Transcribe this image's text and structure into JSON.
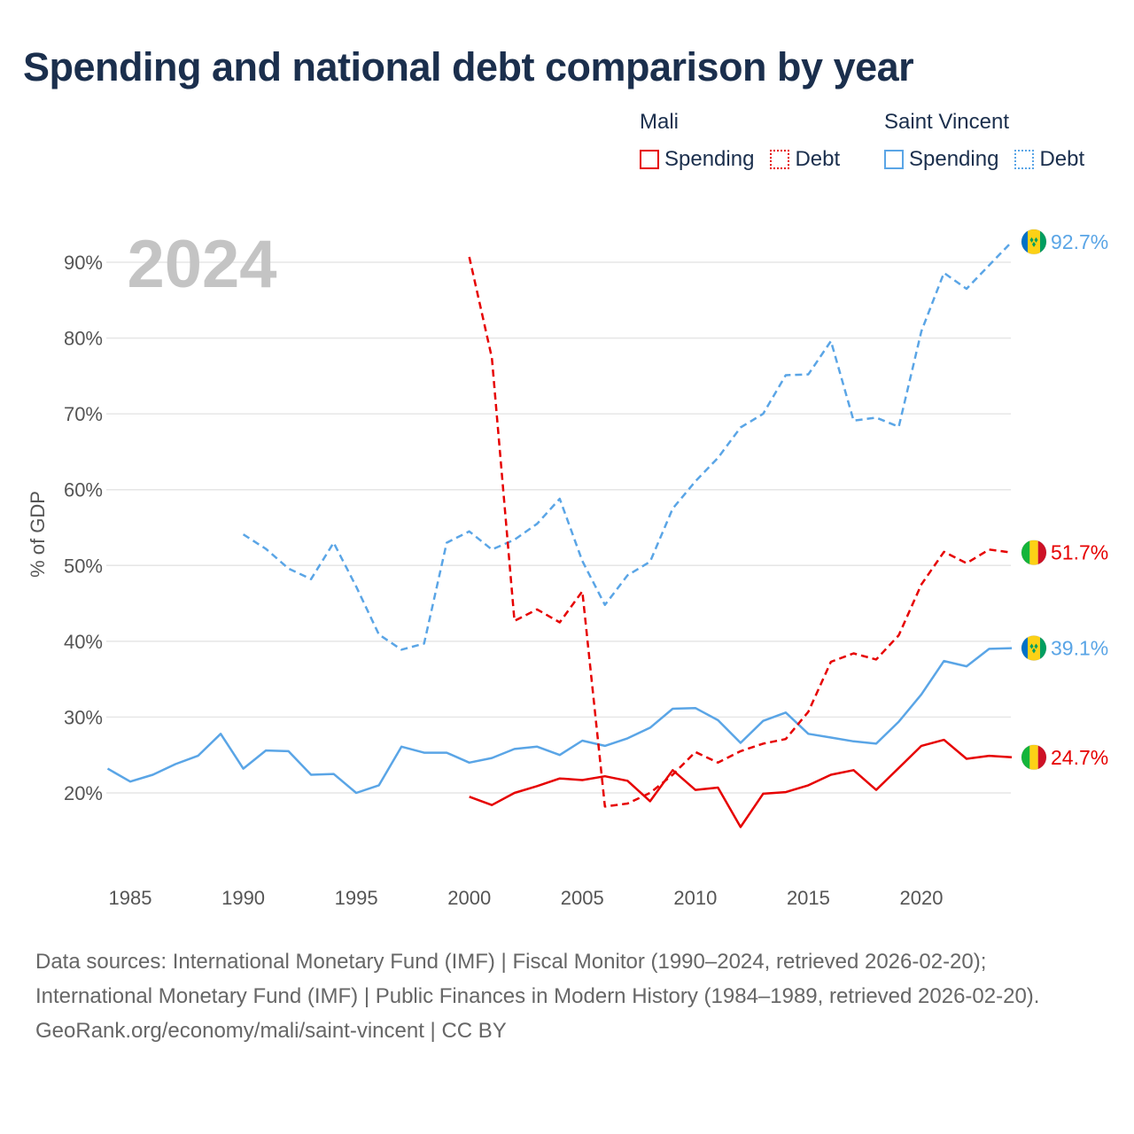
{
  "title": "Spending and national debt comparison by year",
  "colors": {
    "mali": "#e60000",
    "saint_vincent": "#5aa5e6",
    "grid": "#e6e6e6",
    "year": "#c4c4c4"
  },
  "legend": {
    "groups": [
      {
        "name": "Mali",
        "items": [
          {
            "label": "Spending",
            "style": "solid"
          },
          {
            "label": "Debt",
            "style": "dotted"
          }
        ]
      },
      {
        "name": "Saint Vincent",
        "items": [
          {
            "label": "Spending",
            "style": "solid"
          },
          {
            "label": "Debt",
            "style": "dotted"
          }
        ]
      }
    ]
  },
  "chart_data": {
    "type": "line",
    "year_label": "2024",
    "ylabel": "% of GDP",
    "xlim": [
      1984,
      2024
    ],
    "ylim": [
      11,
      95
    ],
    "x_ticks": [
      1985,
      1990,
      1995,
      2000,
      2005,
      2010,
      2015,
      2020
    ],
    "y_ticks": [
      20,
      30,
      40,
      50,
      60,
      70,
      80,
      90
    ],
    "y_tick_labels": [
      "20%",
      "30%",
      "40%",
      "50%",
      "60%",
      "70%",
      "80%",
      "90%"
    ],
    "series": [
      {
        "id": "svg-spending",
        "name": "Saint Vincent Spending",
        "country": "saint_vincent",
        "dash": "solid",
        "end_label": "39.1%",
        "points": [
          [
            1984,
            23.2
          ],
          [
            1985,
            21.5
          ],
          [
            1986,
            22.4
          ],
          [
            1987,
            23.8
          ],
          [
            1988,
            24.9
          ],
          [
            1989,
            27.8
          ],
          [
            1990,
            23.2
          ],
          [
            1991,
            25.6
          ],
          [
            1992,
            25.5
          ],
          [
            1993,
            22.4
          ],
          [
            1994,
            22.5
          ],
          [
            1995,
            20.0
          ],
          [
            1996,
            21.0
          ],
          [
            1997,
            26.1
          ],
          [
            1998,
            25.3
          ],
          [
            1999,
            25.3
          ],
          [
            2000,
            24.0
          ],
          [
            2001,
            24.6
          ],
          [
            2002,
            25.8
          ],
          [
            2003,
            26.1
          ],
          [
            2004,
            25.0
          ],
          [
            2005,
            26.9
          ],
          [
            2006,
            26.2
          ],
          [
            2007,
            27.2
          ],
          [
            2008,
            28.6
          ],
          [
            2009,
            31.1
          ],
          [
            2010,
            31.2
          ],
          [
            2011,
            29.6
          ],
          [
            2012,
            26.6
          ],
          [
            2013,
            29.5
          ],
          [
            2014,
            30.6
          ],
          [
            2015,
            27.8
          ],
          [
            2016,
            27.3
          ],
          [
            2017,
            26.8
          ],
          [
            2018,
            26.5
          ],
          [
            2019,
            29.4
          ],
          [
            2020,
            33.0
          ],
          [
            2021,
            37.4
          ],
          [
            2022,
            36.7
          ],
          [
            2023,
            39.0
          ],
          [
            2024,
            39.1
          ]
        ]
      },
      {
        "id": "svg-debt",
        "name": "Saint Vincent Debt",
        "country": "saint_vincent",
        "dash": "dashed",
        "end_label": "92.7%",
        "points": [
          [
            1990,
            54.1
          ],
          [
            1991,
            52.2
          ],
          [
            1992,
            49.6
          ],
          [
            1993,
            48.2
          ],
          [
            1994,
            53.0
          ],
          [
            1995,
            47.2
          ],
          [
            1996,
            40.9
          ],
          [
            1997,
            38.9
          ],
          [
            1998,
            39.7
          ],
          [
            1999,
            53.0
          ],
          [
            2000,
            54.5
          ],
          [
            2001,
            52.1
          ],
          [
            2002,
            53.4
          ],
          [
            2003,
            55.5
          ],
          [
            2004,
            58.8
          ],
          [
            2005,
            50.6
          ],
          [
            2006,
            44.8
          ],
          [
            2007,
            48.7
          ],
          [
            2008,
            50.5
          ],
          [
            2009,
            57.5
          ],
          [
            2010,
            61.1
          ],
          [
            2011,
            64.2
          ],
          [
            2012,
            68.2
          ],
          [
            2013,
            70.0
          ],
          [
            2014,
            75.1
          ],
          [
            2015,
            75.2
          ],
          [
            2016,
            79.6
          ],
          [
            2017,
            69.1
          ],
          [
            2018,
            69.5
          ],
          [
            2019,
            68.3
          ],
          [
            2020,
            80.9
          ],
          [
            2021,
            88.6
          ],
          [
            2022,
            86.5
          ],
          [
            2023,
            89.6
          ],
          [
            2024,
            92.7
          ]
        ]
      },
      {
        "id": "mali-spending",
        "name": "Mali Spending",
        "country": "mali",
        "dash": "solid",
        "end_label": "24.7%",
        "points": [
          [
            2000,
            19.5
          ],
          [
            2001,
            18.4
          ],
          [
            2002,
            20.0
          ],
          [
            2003,
            20.9
          ],
          [
            2004,
            21.9
          ],
          [
            2005,
            21.7
          ],
          [
            2006,
            22.2
          ],
          [
            2007,
            21.6
          ],
          [
            2008,
            18.9
          ],
          [
            2009,
            23.0
          ],
          [
            2010,
            20.4
          ],
          [
            2011,
            20.7
          ],
          [
            2012,
            15.5
          ],
          [
            2013,
            19.9
          ],
          [
            2014,
            20.1
          ],
          [
            2015,
            21.0
          ],
          [
            2016,
            22.4
          ],
          [
            2017,
            23.0
          ],
          [
            2018,
            20.4
          ],
          [
            2019,
            23.3
          ],
          [
            2020,
            26.2
          ],
          [
            2021,
            27.0
          ],
          [
            2022,
            24.5
          ],
          [
            2023,
            24.9
          ],
          [
            2024,
            24.7
          ]
        ]
      },
      {
        "id": "mali-debt",
        "name": "Mali Debt",
        "country": "mali",
        "dash": "dashed",
        "end_label": "51.7%",
        "points": [
          [
            2000,
            90.7
          ],
          [
            2001,
            77.4
          ],
          [
            2002,
            42.7
          ],
          [
            2003,
            44.2
          ],
          [
            2004,
            42.5
          ],
          [
            2005,
            46.6
          ],
          [
            2006,
            18.2
          ],
          [
            2007,
            18.6
          ],
          [
            2008,
            20.0
          ],
          [
            2009,
            22.4
          ],
          [
            2010,
            25.4
          ],
          [
            2011,
            24.0
          ],
          [
            2012,
            25.5
          ],
          [
            2013,
            26.5
          ],
          [
            2014,
            27.1
          ],
          [
            2015,
            30.7
          ],
          [
            2016,
            37.3
          ],
          [
            2017,
            38.4
          ],
          [
            2018,
            37.6
          ],
          [
            2019,
            40.8
          ],
          [
            2020,
            47.5
          ],
          [
            2021,
            51.8
          ],
          [
            2022,
            50.3
          ],
          [
            2023,
            52.1
          ],
          [
            2024,
            51.7
          ]
        ]
      }
    ]
  },
  "footer": {
    "sources": "Data sources: International Monetary Fund (IMF) | Fiscal Monitor (1990–2024, retrieved 2026-02-20); International Monetary Fund (IMF) | Public Finances in Modern History (1984–1989, retrieved 2026-02-20).",
    "attribution": "GeoRank.org/economy/mali/saint-vincent | CC BY"
  }
}
